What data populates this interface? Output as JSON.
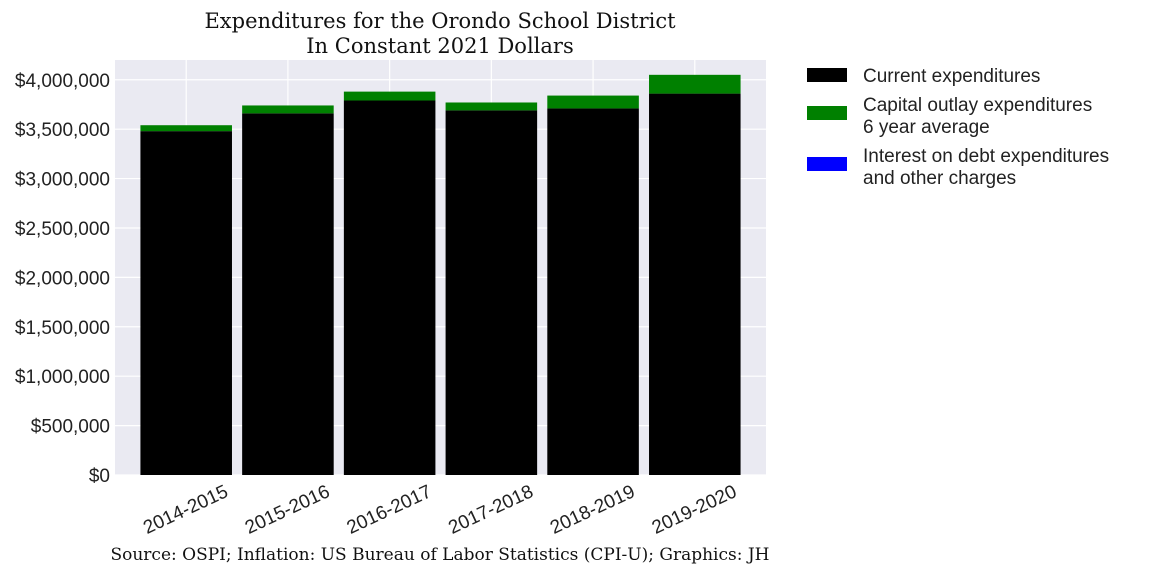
{
  "chart_data": {
    "type": "bar",
    "stacked": true,
    "title": "Expenditures for the Orondo School District",
    "subtitle": "In Constant 2021 Dollars",
    "xlabel": "",
    "ylabel": "",
    "categories": [
      "2014-2015",
      "2015-2016",
      "2016-2017",
      "2017-2018",
      "2018-2019",
      "2019-2020"
    ],
    "series": [
      {
        "name": "Current expenditures",
        "color": "#000000",
        "values": [
          3480000,
          3660000,
          3790000,
          3690000,
          3710000,
          3860000
        ]
      },
      {
        "name": "Capital outlay expenditures\n6 year average",
        "color": "#008000",
        "values": [
          60000,
          80000,
          90000,
          80000,
          130000,
          190000
        ]
      },
      {
        "name": "Interest on debt expenditures\nand other charges",
        "color": "#0000ff",
        "values": [
          0,
          0,
          0,
          0,
          0,
          0
        ]
      }
    ],
    "ylim": [
      0,
      4200000
    ],
    "yticks": [
      0,
      500000,
      1000000,
      1500000,
      2000000,
      2500000,
      3000000,
      3500000,
      4000000
    ],
    "ytick_labels": [
      "$0",
      "$500,000",
      "$1,000,000",
      "$1,500,000",
      "$2,000,000",
      "$2,500,000",
      "$3,000,000",
      "$3,500,000",
      "$4,000,000"
    ],
    "grid": true,
    "plot_background": "#eaeaf2",
    "legend_position": "outside-right",
    "source_note": "Source: OSPI; Inflation: US Bureau of Labor Statistics (CPI-U); Graphics: JH"
  }
}
